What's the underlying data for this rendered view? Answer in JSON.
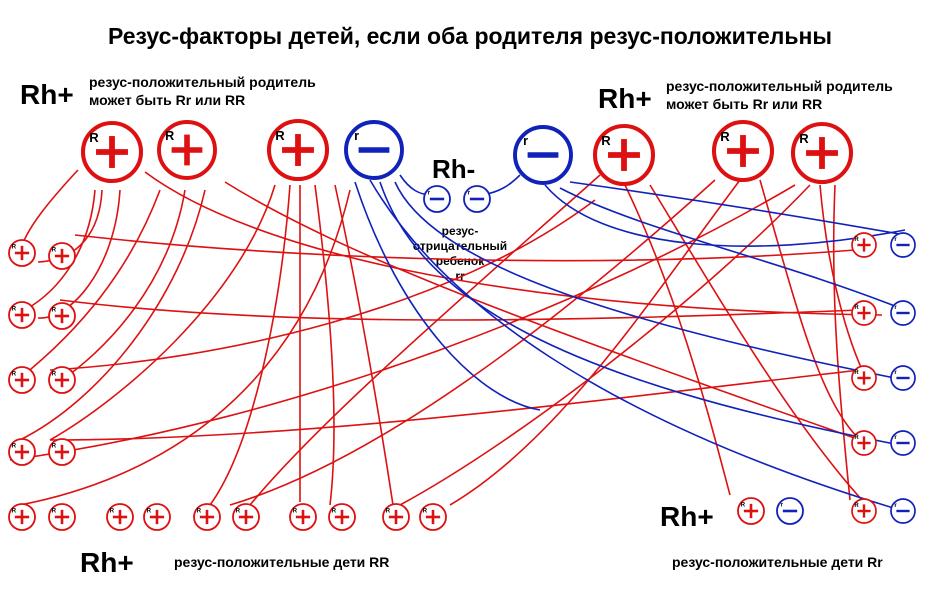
{
  "title": "Резус-факторы детей, если оба родителя резус-положительны",
  "left_parent": {
    "rh_label": "Rh+",
    "note_line1": "резус-положительный родитель",
    "note_line2": "может быть Rr или RR"
  },
  "right_parent": {
    "rh_label": "Rh+",
    "note_line1": "резус-положительный родитель",
    "note_line2": "может быть Rr или RR"
  },
  "center": {
    "rh_label": "Rh-",
    "note_line1": "резус-",
    "note_line2": "отрицательный",
    "note_line3": "ребенок",
    "note_line4": "rr"
  },
  "bottom_left": {
    "rh_label": "Rh+",
    "caption": "резус-положительные дети RR"
  },
  "bottom_right": {
    "rh_label": "Rh+",
    "caption": "резус-положительные дети Rr"
  },
  "allele_labels": {
    "dominant": "R",
    "recessive": "r"
  },
  "colors": {
    "positive": "#dd1111",
    "negative": "#1122bb",
    "text": "#000000"
  },
  "icons": {
    "positive_allele": "plus-circle-icon",
    "negative_allele": "minus-circle-icon"
  }
}
